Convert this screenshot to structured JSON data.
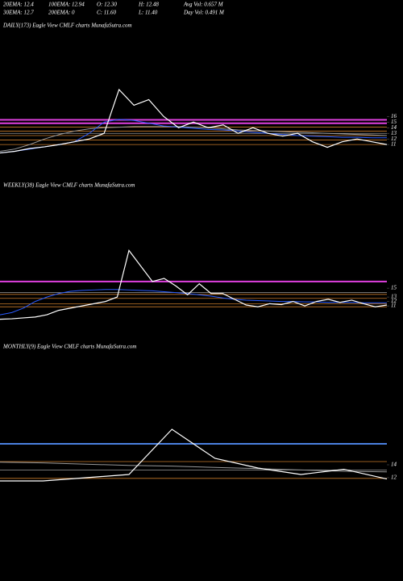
{
  "header": [
    [
      "20EMA: 12.4",
      "100EMA: 12.94",
      "O: 12.30",
      "H: 12.48",
      "Avg Vol: 0.657 M"
    ],
    [
      "30EMA: 12.7",
      "200EMA: 0",
      "C: 11.60",
      "L: 11.40",
      "Day Vol: 0.491 M"
    ]
  ],
  "chart_data": [
    {
      "type": "line",
      "title": "DAILY(173) Eagle  View  CMLF charts MunafaSutra.com",
      "ylim": [
        8,
        31
      ],
      "yticks": [
        11,
        12,
        13,
        14,
        15,
        16
      ],
      "hlines": [
        {
          "value": 15.4,
          "color": "#e040e0"
        },
        {
          "value": 14.8,
          "color": "#e040e0"
        },
        {
          "value": 14.1,
          "color": "#c87a2a"
        },
        {
          "value": 13.4,
          "color": "#c87a2a"
        },
        {
          "value": 12.6,
          "color": "#c87a2a"
        },
        {
          "value": 11.8,
          "color": "#c87a2a"
        },
        {
          "value": 11.0,
          "color": "#c87a2a"
        },
        {
          "value": 13.0,
          "color": "#999999"
        }
      ],
      "series": [
        {
          "name": "SMA",
          "color": "#9a9a9a",
          "values": [
            9.8,
            10.2,
            11,
            12,
            12.8,
            13.4,
            13.8,
            14.0,
            14.1,
            14.2,
            14.2,
            14.2,
            14.2,
            14.1,
            14.0,
            13.8,
            13.6,
            13.5,
            13.4,
            13.3,
            13.2,
            13.1,
            13.0,
            12.9,
            12.8,
            12.7,
            12.6
          ]
        },
        {
          "name": "EMA",
          "color": "#2a5cff",
          "values": [
            9.5,
            9.8,
            10.2,
            10.6,
            11.0,
            11.5,
            13.0,
            15.0,
            15.5,
            15.3,
            14.8,
            14.3,
            14.1,
            13.9,
            13.7,
            13.6,
            13.4,
            13.2,
            13.0,
            12.8,
            12.6,
            12.5,
            12.4,
            12.3,
            12.3,
            12.2,
            12.2
          ]
        },
        {
          "name": "Price",
          "color": "#ffffff",
          "values": [
            9.5,
            9.8,
            10.3,
            10.6,
            11.0,
            11.5,
            12.0,
            13.0,
            20.8,
            18.0,
            19.0,
            16.0,
            14.0,
            15.0,
            14.0,
            14.5,
            13.0,
            14.0,
            13.0,
            12.5,
            13.0,
            11.5,
            10.5,
            11.5,
            12.0,
            11.5,
            11.0
          ]
        }
      ]
    },
    {
      "type": "line",
      "title": "WEEKLY(38) Eagle  View  CMLF charts MunafaSutra.com",
      "ylim": [
        7.2,
        36.3
      ],
      "yticks": [
        11,
        12,
        13,
        15
      ],
      "hlines": [
        {
          "value": 16.5,
          "color": "#e040e0"
        },
        {
          "value": 13.6,
          "color": "#c87a2a"
        },
        {
          "value": 12.7,
          "color": "#c87a2a"
        },
        {
          "value": 11.5,
          "color": "#c87a2a"
        },
        {
          "value": 10.8,
          "color": "#c87a2a"
        },
        {
          "value": 14.0,
          "color": "#999999"
        }
      ],
      "series": [
        {
          "name": "EMA",
          "color": "#2a5cff",
          "values": [
            9,
            9.5,
            10.5,
            12,
            13,
            13.8,
            14.3,
            14.5,
            14.6,
            14.7,
            14.7,
            14.6,
            14.5,
            14.4,
            14.2,
            14,
            13.8,
            13.5,
            13.2,
            12.8,
            12.5,
            12.3,
            12.2,
            12.1,
            12,
            12,
            11.9,
            11.9,
            11.8,
            11.8,
            11.8,
            11.7,
            11.7,
            11.7
          ]
        },
        {
          "name": "Price",
          "color": "#ffffff",
          "values": [
            8.0,
            8.1,
            8.3,
            8.5,
            9.0,
            10,
            10.5,
            11,
            11.5,
            12,
            13,
            23.5,
            20,
            16.5,
            17.2,
            15.5,
            13.5,
            16,
            13.8,
            13.8,
            12.5,
            11.2,
            10.8,
            11.5,
            11.3,
            12,
            11,
            12,
            12.5,
            11.8,
            12.3,
            11.5,
            10.8,
            11.2
          ]
        }
      ]
    },
    {
      "type": "line",
      "title": "MONTHLY(9) Eagle  View  CMLF charts MunafaSutra.com",
      "ylim": [
        8.5,
        31
      ],
      "yticks": [
        12,
        14
      ],
      "hlines": [
        {
          "value": 17.25,
          "color": "#4a80e0"
        },
        {
          "value": 14.5,
          "color": "#c87a2a"
        },
        {
          "value": 11.9,
          "color": "#c87a2a"
        },
        {
          "value": 13.2,
          "color": "#999999"
        }
      ],
      "series": [
        {
          "name": "SMA",
          "color": "#9a9a9a",
          "values": [
            14.4,
            14.3,
            14.1,
            13.9,
            13.8,
            13.6,
            13.4,
            13.2,
            13.0,
            12.9
          ]
        },
        {
          "name": "Price",
          "color": "#ffffff",
          "values": [
            11.5,
            11.5,
            12,
            12.5,
            19.5,
            15,
            13.5,
            12.5,
            13.3,
            11.8
          ]
        }
      ]
    }
  ]
}
